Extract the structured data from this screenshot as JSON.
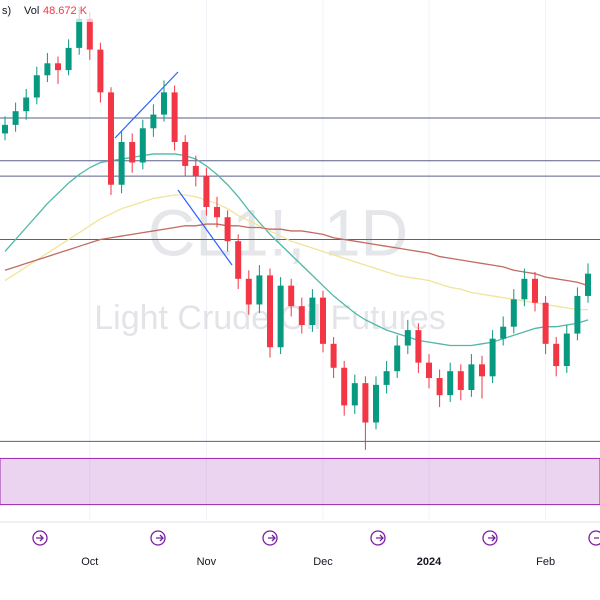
{
  "chart_data": {
    "type": "candlestick",
    "watermark_title": "CL1!, 1D",
    "watermark_subtitle": "Light Crude Oil Futures",
    "legend_fragment": "s)",
    "volume_label": "Vol",
    "volume_value": "48.672 K",
    "categories": [
      null,
      null,
      null,
      null,
      null,
      null,
      null,
      null,
      "Oct",
      null,
      null,
      null,
      null,
      null,
      null,
      null,
      null,
      null,
      null,
      "Nov",
      null,
      null,
      null,
      null,
      null,
      null,
      null,
      null,
      null,
      null,
      "Dec",
      null,
      null,
      null,
      null,
      null,
      null,
      null,
      null,
      null,
      "2024",
      null,
      null,
      null,
      null,
      null,
      null,
      null,
      null,
      null,
      null,
      "Feb",
      null,
      null,
      null,
      null
    ],
    "open": [
      86.5,
      87.0,
      87.8,
      88.6,
      89.9,
      90.6,
      90.2,
      91.5,
      93.2,
      91.4,
      88.9,
      83.5,
      86.0,
      84.8,
      86.8,
      87.6,
      88.9,
      86.0,
      84.6,
      84.0,
      82.2,
      81.6,
      80.2,
      78.0,
      76.5,
      78.2,
      74.0,
      77.6,
      76.4,
      75.3,
      76.9,
      74.2,
      72.8,
      70.6,
      71.9,
      69.6,
      71.8,
      72.6,
      74.1,
      75.0,
      73.1,
      72.2,
      71.2,
      72.6,
      71.5,
      73.0,
      72.3,
      74.5,
      75.2,
      76.8,
      78.0,
      76.6,
      74.2,
      72.9,
      74.8,
      77.0
    ],
    "high": [
      87.5,
      88.3,
      89.1,
      90.4,
      91.2,
      91.0,
      92.0,
      93.9,
      93.6,
      91.8,
      89.2,
      86.6,
      86.5,
      87.3,
      88.2,
      89.6,
      89.3,
      86.4,
      85.2,
      84.5,
      82.8,
      82.0,
      80.6,
      78.5,
      78.8,
      78.6,
      78.1,
      78.0,
      76.9,
      77.4,
      77.3,
      74.6,
      73.2,
      72.4,
      72.3,
      72.3,
      73.2,
      74.7,
      75.6,
      75.4,
      73.6,
      72.7,
      73.1,
      73.0,
      73.6,
      73.5,
      75.0,
      75.8,
      77.4,
      78.6,
      78.4,
      77.0,
      74.6,
      75.3,
      77.5,
      78.9
    ],
    "low": [
      86.1,
      86.6,
      87.3,
      88.2,
      89.5,
      89.4,
      89.9,
      91.1,
      90.8,
      88.3,
      82.9,
      83.0,
      84.2,
      84.4,
      86.3,
      87.2,
      85.5,
      84.0,
      83.4,
      81.7,
      81.0,
      79.6,
      77.4,
      75.9,
      76.0,
      73.4,
      73.6,
      75.8,
      74.8,
      74.9,
      73.7,
      72.2,
      70.0,
      70.1,
      68.0,
      69.2,
      71.3,
      72.2,
      73.6,
      72.5,
      71.6,
      70.5,
      70.8,
      70.9,
      71.1,
      71.0,
      71.9,
      74.1,
      74.8,
      76.4,
      76.1,
      73.6,
      72.3,
      72.5,
      74.4,
      76.6
    ],
    "close": [
      87.0,
      87.8,
      88.6,
      89.9,
      90.6,
      90.2,
      91.5,
      93.2,
      91.4,
      88.9,
      83.5,
      86.0,
      84.8,
      86.8,
      87.6,
      88.9,
      86.0,
      84.6,
      84.0,
      82.2,
      81.6,
      80.2,
      78.0,
      76.5,
      78.2,
      74.0,
      77.6,
      76.4,
      75.3,
      76.9,
      74.2,
      72.8,
      70.6,
      71.9,
      69.6,
      71.8,
      72.6,
      74.1,
      75.0,
      73.1,
      72.2,
      71.2,
      72.6,
      71.5,
      73.0,
      72.3,
      74.5,
      75.2,
      76.8,
      78.0,
      76.6,
      74.2,
      72.9,
      74.8,
      77.0,
      78.3
    ],
    "up_color": "#089981",
    "down_color": "#f23645",
    "moving_averages": [
      {
        "color": "#4fb8a8",
        "values": [
          79.6,
          80.3,
          81.0,
          81.7,
          82.4,
          83.0,
          83.6,
          84.1,
          84.5,
          84.8,
          84.9,
          85.0,
          85.1,
          85.2,
          85.3,
          85.3,
          85.3,
          85.2,
          85.0,
          84.6,
          84.1,
          83.5,
          82.8,
          82.0,
          81.3,
          80.6,
          80.0,
          79.4,
          78.8,
          78.2,
          77.6,
          77.0,
          76.5,
          76.0,
          75.6,
          75.3,
          75.0,
          74.8,
          74.6,
          74.4,
          74.3,
          74.2,
          74.1,
          74.1,
          74.1,
          74.2,
          74.3,
          74.5,
          74.7,
          74.9,
          75.1,
          75.2,
          75.2,
          75.3,
          75.4,
          75.6
        ]
      },
      {
        "color": "#f3e39a",
        "values": [
          77.9,
          78.3,
          78.7,
          79.1,
          79.5,
          79.9,
          80.3,
          80.7,
          81.1,
          81.5,
          81.8,
          82.1,
          82.3,
          82.5,
          82.7,
          82.8,
          82.9,
          82.9,
          82.8,
          82.6,
          82.4,
          82.1,
          81.7,
          81.4,
          81.1,
          80.8,
          80.5,
          80.2,
          80.0,
          79.8,
          79.6,
          79.4,
          79.2,
          79.0,
          78.8,
          78.6,
          78.4,
          78.2,
          78.1,
          78.0,
          77.9,
          77.7,
          77.5,
          77.4,
          77.2,
          77.1,
          77.0,
          76.9,
          76.8,
          76.7,
          76.6,
          76.5,
          76.4,
          76.3,
          76.2,
          76.2
        ]
      },
      {
        "color": "#c26b62",
        "values": [
          78.5,
          78.7,
          78.9,
          79.1,
          79.3,
          79.5,
          79.7,
          79.9,
          80.1,
          80.3,
          80.4,
          80.5,
          80.6,
          80.7,
          80.8,
          80.9,
          81.0,
          81.1,
          81.1,
          81.2,
          81.2,
          81.1,
          81.1,
          81.0,
          81.0,
          80.9,
          80.9,
          80.8,
          80.8,
          80.7,
          80.6,
          80.4,
          80.3,
          80.2,
          80.1,
          80.0,
          79.9,
          79.8,
          79.7,
          79.6,
          79.5,
          79.3,
          79.2,
          79.1,
          79.0,
          78.9,
          78.8,
          78.7,
          78.5,
          78.4,
          78.3,
          78.1,
          78.0,
          77.9,
          77.8,
          77.6
        ]
      }
    ],
    "levels": [
      87.4,
      84.9,
      84.0,
      80.3,
      68.5
    ],
    "level_color": "#5a5f8a",
    "zone": [
      64.8,
      67.5
    ],
    "zone_color": "#9c27b0",
    "ylim": [
      63.9,
      94.3
    ],
    "grid": true
  }
}
